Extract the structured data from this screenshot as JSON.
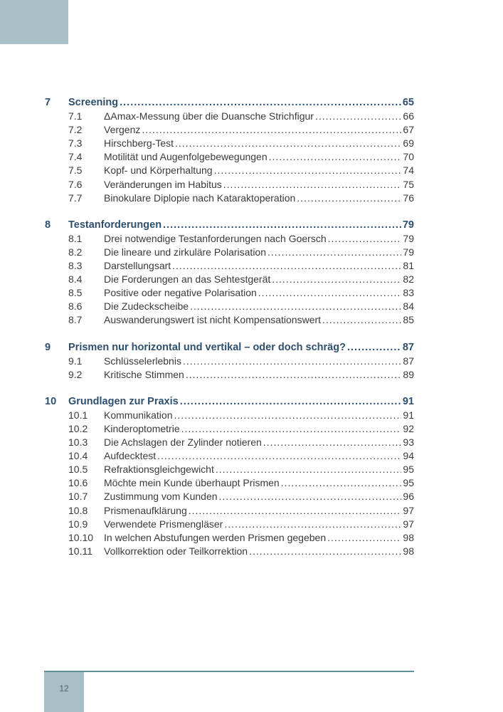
{
  "chapters": [
    {
      "num": "7",
      "title": "Screening",
      "page": "65",
      "sections": [
        {
          "num": "7.1",
          "title": "ΔAmax-Messung über die Duansche Strichfigur",
          "page": "66"
        },
        {
          "num": "7.2",
          "title": "Vergenz",
          "page": "67"
        },
        {
          "num": "7.3",
          "title": "Hirschberg-Test",
          "page": "69"
        },
        {
          "num": "7.4",
          "title": "Motilität und Augenfolgebewegungen",
          "page": "70"
        },
        {
          "num": "7.5",
          "title": "Kopf- und Körperhaltung",
          "page": "74"
        },
        {
          "num": "7.6",
          "title": "Veränderungen im Habitus",
          "page": "75"
        },
        {
          "num": "7.7",
          "title": "Binokulare Diplopie nach Kataraktoperation",
          "page": "76"
        }
      ]
    },
    {
      "num": "8",
      "title": "Testanforderungen",
      "page": "79",
      "sections": [
        {
          "num": "8.1",
          "title": "Drei notwendige Testanforderungen nach Goersch",
          "page": "79"
        },
        {
          "num": "8.2",
          "title": "Die lineare und zirkuläre Polarisation",
          "page": "79"
        },
        {
          "num": "8.3",
          "title": "Darstellungsart",
          "page": "81"
        },
        {
          "num": "8.4",
          "title": "Die Forderungen an das Sehtestgerät",
          "page": "82"
        },
        {
          "num": "8.5",
          "title": "Positive oder negative Polarisation",
          "page": "83"
        },
        {
          "num": "8.6",
          "title": "Die Zudeckscheibe",
          "page": "84"
        },
        {
          "num": "8.7",
          "title": "Auswanderungswert ist nicht Kompensationswert",
          "page": "85"
        }
      ]
    },
    {
      "num": "9",
      "title": "Prismen nur horizontal und vertikal – oder doch schräg?",
      "page": "87",
      "sections": [
        {
          "num": "9.1",
          "title": "Schlüsselerlebnis",
          "page": "87"
        },
        {
          "num": "9.2",
          "title": "Kritische Stimmen",
          "page": "89"
        }
      ]
    },
    {
      "num": "10",
      "title": "Grundlagen zur Praxis",
      "page": "91",
      "sections": [
        {
          "num": "10.1",
          "title": "Kommunikation",
          "page": "91"
        },
        {
          "num": "10.2",
          "title": "Kinderoptometrie",
          "page": "92"
        },
        {
          "num": "10.3",
          "title": "Die Achslagen der Zylinder notieren",
          "page": "93"
        },
        {
          "num": "10.4",
          "title": "Aufdecktest",
          "page": "94"
        },
        {
          "num": "10.5",
          "title": "Refraktionsgleichgewicht",
          "page": "95"
        },
        {
          "num": "10.6",
          "title": "Möchte mein Kunde überhaupt Prismen",
          "page": "95"
        },
        {
          "num": "10.7",
          "title": "Zustimmung vom Kunden",
          "page": "96"
        },
        {
          "num": "10.8",
          "title": "Prismenaufklärung",
          "page": "97"
        },
        {
          "num": "10.9",
          "title": "Verwendete Prismengläser",
          "page": "97"
        },
        {
          "num": "10.10",
          "title": "In welchen Abstufungen werden Prismen gegeben",
          "page": "98"
        },
        {
          "num": "10.11",
          "title": "Vollkorrektion oder Teilkorrektion",
          "page": "98"
        }
      ]
    }
  ],
  "footer": {
    "page_number": "12"
  },
  "colors": {
    "accent_box": "#a9bfc6",
    "heading": "#2e4f6e",
    "rule": "#5f8f99"
  }
}
